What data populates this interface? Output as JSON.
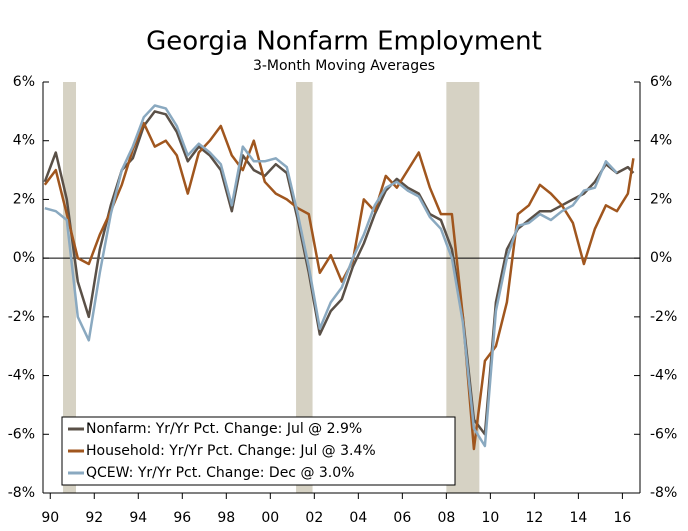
{
  "chart_data": {
    "type": "line",
    "title": "Georgia Nonfarm Employment",
    "subtitle": "3-Month Moving Averages",
    "xlim": [
      1989.67,
      2016.8
    ],
    "xticks": [
      {
        "value": 1990,
        "label": "90"
      },
      {
        "value": 1992,
        "label": "92"
      },
      {
        "value": 1994,
        "label": "94"
      },
      {
        "value": 1996,
        "label": "96"
      },
      {
        "value": 1998,
        "label": "98"
      },
      {
        "value": 2000,
        "label": "00"
      },
      {
        "value": 2002,
        "label": "02"
      },
      {
        "value": 2004,
        "label": "04"
      },
      {
        "value": 2006,
        "label": "06"
      },
      {
        "value": 2008,
        "label": "08"
      },
      {
        "value": 2010,
        "label": "10"
      },
      {
        "value": 2012,
        "label": "12"
      },
      {
        "value": 2014,
        "label": "14"
      },
      {
        "value": 2016,
        "label": "16"
      }
    ],
    "ylim": [
      -8,
      6
    ],
    "yticks": [
      {
        "value": -8,
        "label": "-8%"
      },
      {
        "value": -6,
        "label": "-6%"
      },
      {
        "value": -4,
        "label": "-4%"
      },
      {
        "value": -2,
        "label": "-2%"
      },
      {
        "value": 0,
        "label": "0%"
      },
      {
        "value": 2,
        "label": "2%"
      },
      {
        "value": 4,
        "label": "4%"
      },
      {
        "value": 6,
        "label": "6%"
      }
    ],
    "y2lim": [
      -8,
      6
    ],
    "y2ticks": [
      {
        "value": -8,
        "label": "-8%"
      },
      {
        "value": -6,
        "label": "-6%"
      },
      {
        "value": -4,
        "label": "-4%"
      },
      {
        "value": -2,
        "label": "-2%"
      },
      {
        "value": 0,
        "label": "0%"
      },
      {
        "value": 2,
        "label": "2%"
      },
      {
        "value": 4,
        "label": "4%"
      },
      {
        "value": 6,
        "label": "6%"
      }
    ],
    "shaded_periods": [
      [
        1990.58,
        1991.17
      ],
      [
        2001.17,
        2001.92
      ],
      [
        2008.0,
        2009.5
      ]
    ],
    "shade_color": "#d6d2c4",
    "legend": "lower left",
    "x": [
      1989.75,
      1990.25,
      1990.75,
      1991.25,
      1991.75,
      1992.25,
      1992.75,
      1993.25,
      1993.75,
      1994.25,
      1994.75,
      1995.25,
      1995.75,
      1996.25,
      1996.75,
      1997.25,
      1997.75,
      1998.25,
      1998.75,
      1999.25,
      1999.75,
      2000.25,
      2000.75,
      2001.25,
      2001.75,
      2002.25,
      2002.75,
      2003.25,
      2003.75,
      2004.25,
      2004.75,
      2005.25,
      2005.75,
      2006.25,
      2006.75,
      2007.25,
      2007.75,
      2008.25,
      2008.75,
      2009.25,
      2009.75,
      2010.25,
      2010.75,
      2011.25,
      2011.75,
      2012.25,
      2012.75,
      2013.25,
      2013.75,
      2014.25,
      2014.75,
      2015.25,
      2015.75,
      2016.25,
      2016.5
    ],
    "series": [
      {
        "name": "Nonfarm: Yr/Yr Pct. Change: Jul @ 2.9%",
        "color": "#5a5047",
        "values": [
          2.6,
          3.6,
          2.0,
          -0.8,
          -2.0,
          0.3,
          1.8,
          3.0,
          3.4,
          4.5,
          5.0,
          4.9,
          4.3,
          3.3,
          3.8,
          3.5,
          3.0,
          1.6,
          3.5,
          3.0,
          2.8,
          3.2,
          2.9,
          1.3,
          -0.5,
          -2.6,
          -1.8,
          -1.4,
          -0.3,
          0.5,
          1.5,
          2.3,
          2.7,
          2.4,
          2.2,
          1.5,
          1.3,
          0.3,
          -2.0,
          -5.5,
          -6.0,
          -1.5,
          0.3,
          1.0,
          1.3,
          1.6,
          1.6,
          1.8,
          2.0,
          2.2,
          2.6,
          3.2,
          2.9,
          3.1,
          2.9
        ]
      },
      {
        "name": "Household: Yr/Yr Pct. Change: Jul @ 3.4%",
        "color": "#a0561e",
        "values": [
          2.5,
          3.0,
          1.5,
          0,
          -0.2,
          0.8,
          1.6,
          2.5,
          3.7,
          4.6,
          3.8,
          4.0,
          3.5,
          2.2,
          3.6,
          4.0,
          4.5,
          3.5,
          3.0,
          4.0,
          2.6,
          2.2,
          2.0,
          1.7,
          1.5,
          -0.5,
          0.1,
          -0.8,
          -0.1,
          2.0,
          1.6,
          2.8,
          2.4,
          3.0,
          3.6,
          2.4,
          1.5,
          1.5,
          -2.0,
          -6.5,
          -3.5,
          -3.0,
          -1.5,
          1.5,
          1.8,
          2.5,
          2.2,
          1.8,
          1.2,
          -0.2,
          1.0,
          1.8,
          1.6,
          2.2,
          3.4
        ]
      },
      {
        "name": "QCEW: Yr/Yr Pct. Change: Dec @ 3.0%",
        "color": "#8aa9c0",
        "values": [
          1.7,
          1.6,
          1.3,
          -2.0,
          -2.8,
          -0.5,
          1.5,
          3.0,
          3.8,
          4.8,
          5.2,
          5.1,
          4.5,
          3.5,
          3.9,
          3.6,
          3.2,
          1.8,
          3.8,
          3.3,
          3.3,
          3.4,
          3.1,
          1.5,
          -0.3,
          -2.4,
          -1.5,
          -1.0,
          0,
          0.8,
          1.8,
          2.4,
          2.6,
          2.3,
          2.1,
          1.4,
          1.0,
          0.0,
          -2.2,
          -5.8,
          -6.4,
          -1.8,
          0.0,
          1.1,
          1.2,
          1.5,
          1.3,
          1.6,
          1.8,
          2.3,
          2.4,
          3.3,
          2.9,
          null,
          null
        ]
      }
    ]
  }
}
